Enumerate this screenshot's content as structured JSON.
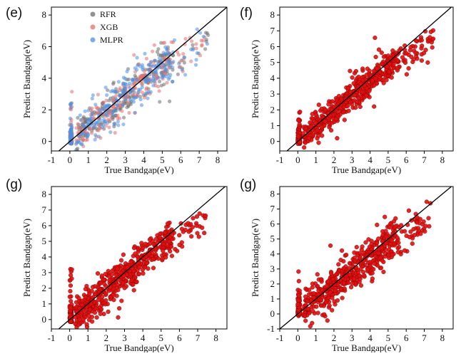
{
  "panels": [
    {
      "letter": "(e)",
      "chart_data": {
        "type": "scatter",
        "xlabel": "True Bandgap(eV)",
        "ylabel": "Predict Bandgap(eV)",
        "xlim": [
          -1,
          8.5
        ],
        "ylim": [
          -0.6,
          8.5
        ],
        "xticks": [
          -1,
          0,
          1,
          2,
          3,
          4,
          5,
          6,
          7,
          8
        ],
        "yticks": [
          0,
          2,
          4,
          6,
          8
        ],
        "legend_position": "top-left",
        "reference_line": "y = x",
        "series": [
          {
            "name": "RFR",
            "color": "#6e6e6e",
            "seed": 11,
            "scatter": 0.55
          },
          {
            "name": "XGB",
            "color": "#e07070",
            "seed": 23,
            "scatter": 0.6
          },
          {
            "name": "MLPR",
            "color": "#4a90e2",
            "seed": 37,
            "scatter": 0.7
          }
        ]
      }
    },
    {
      "letter": "(f)",
      "chart_data": {
        "type": "scatter",
        "xlabel": "True Bandgap(eV)",
        "ylabel": "Predict Bandgap(eV)",
        "xlim": [
          -1,
          8.6
        ],
        "ylim": [
          -0.6,
          8.5
        ],
        "xticks": [
          -1,
          0,
          1,
          2,
          3,
          4,
          5,
          6,
          7,
          8
        ],
        "yticks": [
          0,
          1,
          2,
          3,
          4,
          5,
          6,
          7,
          8
        ],
        "reference_line": "y = x",
        "series": [
          {
            "name": "",
            "color": "#e01010",
            "seed": 51,
            "scatter": 0.45
          }
        ]
      }
    },
    {
      "letter": "(g)",
      "chart_data": {
        "type": "scatter",
        "xlabel": "True Bandgap(eV)",
        "ylabel": "Predict Bandgap(eV)",
        "xlim": [
          -1,
          8.6
        ],
        "ylim": [
          -0.6,
          8.5
        ],
        "xticks": [
          -1,
          0,
          1,
          2,
          3,
          4,
          5,
          6,
          7,
          8
        ],
        "yticks": [
          0,
          1,
          2,
          3,
          4,
          5,
          6,
          7,
          8
        ],
        "reference_line": "y = x",
        "series": [
          {
            "name": "",
            "color": "#e01010",
            "seed": 67,
            "scatter": 0.55
          }
        ]
      }
    },
    {
      "letter": "(g)",
      "chart_data": {
        "type": "scatter",
        "xlabel": "True Bandgap(eV)",
        "ylabel": "Predict Bandgap(eV)",
        "xlim": [
          -1,
          8.6
        ],
        "ylim": [
          -1,
          8.5
        ],
        "xticks": [
          -1,
          0,
          1,
          2,
          3,
          4,
          5,
          6,
          7,
          8
        ],
        "yticks": [
          -1,
          0,
          1,
          2,
          3,
          4,
          5,
          6,
          7,
          8
        ],
        "reference_line": "y = x",
        "series": [
          {
            "name": "",
            "color": "#e01010",
            "seed": 83,
            "scatter": 0.6
          }
        ]
      }
    }
  ]
}
